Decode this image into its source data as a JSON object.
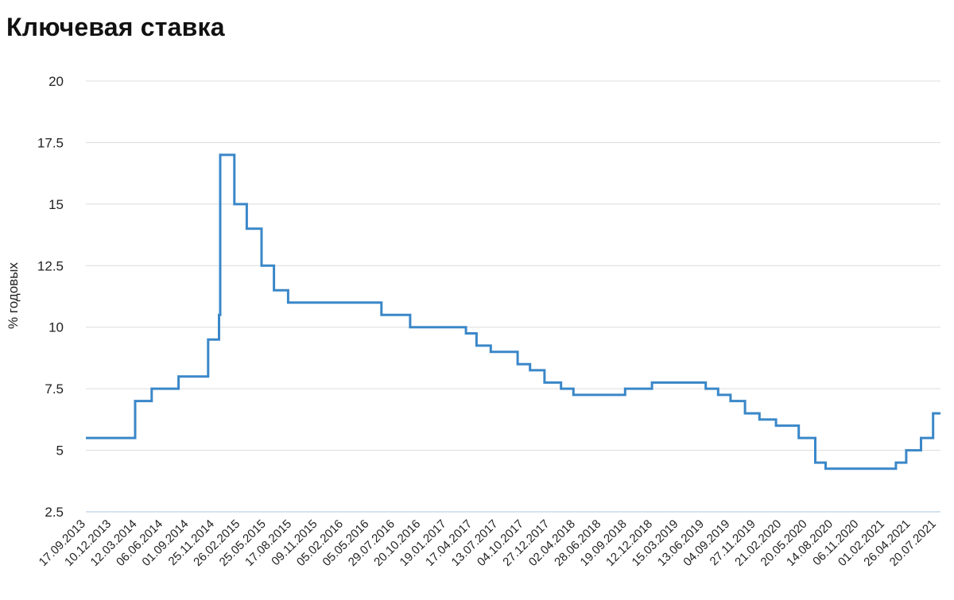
{
  "chart_data": {
    "type": "line",
    "title": "Ключевая ставка",
    "xlabel": "",
    "ylabel": "% годовых",
    "ylim": [
      2.5,
      20
    ],
    "yticks": [
      "2.5",
      "5",
      "7.5",
      "10",
      "12.5",
      "15",
      "17.5",
      "20"
    ],
    "xlim": [
      "2013-09-17",
      "2021-08-20"
    ],
    "x_tick_labels": [
      "17.09.2013",
      "10.12.2013",
      "12.03.2014",
      "06.06.2014",
      "01.09.2014",
      "25.11.2014",
      "26.02.2015",
      "25.05.2015",
      "17.08.2015",
      "09.11.2015",
      "05.02.2016",
      "05.05.2016",
      "29.07.2016",
      "20.10.2016",
      "19.01.2017",
      "17.04.2017",
      "13.07.2017",
      "04.10.2017",
      "27.12.2017",
      "02.04.2018",
      "28.06.2018",
      "19.09.2018",
      "12.12.2018",
      "15.03.2019",
      "13.06.2019",
      "04.09.2019",
      "27.11.2019",
      "21.02.2020",
      "20.05.2020",
      "14.08.2020",
      "06.11.2020",
      "01.02.2021",
      "26.04.2021",
      "20.07.2021"
    ],
    "grid": true,
    "step": true,
    "color": "#3a87c8",
    "series": [
      {
        "points": [
          [
            "2013-09-17",
            5.5
          ],
          [
            "2014-03-03",
            7.0
          ],
          [
            "2014-04-28",
            7.5
          ],
          [
            "2014-07-28",
            8.0
          ],
          [
            "2014-11-05",
            9.5
          ],
          [
            "2014-12-12",
            10.5
          ],
          [
            "2014-12-16",
            17.0
          ],
          [
            "2015-02-02",
            15.0
          ],
          [
            "2015-03-16",
            14.0
          ],
          [
            "2015-05-05",
            12.5
          ],
          [
            "2015-06-16",
            11.5
          ],
          [
            "2015-08-03",
            11.0
          ],
          [
            "2016-06-14",
            10.5
          ],
          [
            "2016-09-19",
            10.0
          ],
          [
            "2017-03-27",
            9.75
          ],
          [
            "2017-05-02",
            9.25
          ],
          [
            "2017-06-19",
            9.0
          ],
          [
            "2017-09-18",
            8.5
          ],
          [
            "2017-10-30",
            8.25
          ],
          [
            "2017-12-18",
            7.75
          ],
          [
            "2018-02-12",
            7.5
          ],
          [
            "2018-03-26",
            7.25
          ],
          [
            "2018-09-17",
            7.5
          ],
          [
            "2018-12-17",
            7.75
          ],
          [
            "2019-06-17",
            7.5
          ],
          [
            "2019-07-29",
            7.25
          ],
          [
            "2019-09-09",
            7.0
          ],
          [
            "2019-10-28",
            6.5
          ],
          [
            "2019-12-16",
            6.25
          ],
          [
            "2020-02-10",
            6.0
          ],
          [
            "2020-04-27",
            5.5
          ],
          [
            "2020-06-22",
            4.5
          ],
          [
            "2020-07-27",
            4.25
          ],
          [
            "2021-03-22",
            4.5
          ],
          [
            "2021-04-26",
            5.0
          ],
          [
            "2021-06-15",
            5.5
          ],
          [
            "2021-07-26",
            6.5
          ],
          [
            "2021-08-20",
            6.5
          ]
        ]
      }
    ]
  }
}
